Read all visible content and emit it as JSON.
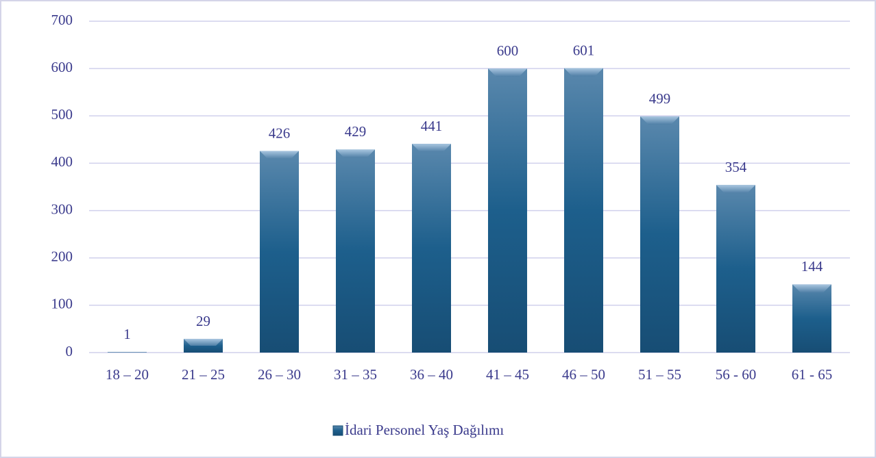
{
  "chart_data": {
    "type": "bar",
    "categories": [
      "18 – 20",
      "21 – 25",
      "26 – 30",
      "31 – 35",
      "36 – 40",
      "41 – 45",
      "46 – 50",
      "51 – 55",
      "56 - 60",
      "61 - 65"
    ],
    "series": [
      {
        "name": "İdari Personel Yaş Dağılımı",
        "color": "#1f5f8b",
        "values": [
          1,
          29,
          426,
          429,
          441,
          600,
          601,
          499,
          354,
          144
        ]
      }
    ],
    "ylim": [
      0,
      700
    ],
    "yticks": [
      0,
      100,
      200,
      300,
      400,
      500,
      600,
      700
    ],
    "grid": true,
    "legend": "bottom"
  }
}
